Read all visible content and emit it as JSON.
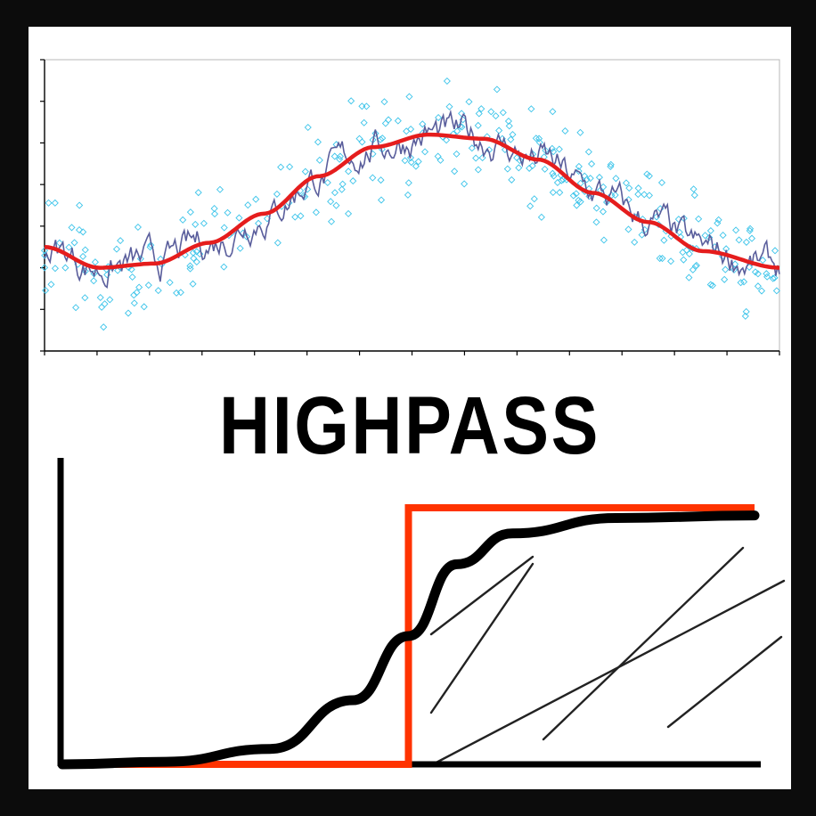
{
  "title": "HIGHPASS",
  "colors": {
    "frame": "#0c0c0c",
    "scatter": "#3cc4ea",
    "smooth": "#e51d1d",
    "noisy": "#5a5e9c",
    "filter": "#ff3300",
    "sketch": "#000000"
  },
  "chart_data": [
    {
      "type": "scatter",
      "xlim": [
        0,
        13.4
      ],
      "ylim": [
        0,
        7
      ],
      "x_ticks": 14,
      "y_ticks": 7,
      "grid": false,
      "series": [
        {
          "kind": "smooth-line",
          "x": [
            0,
            1,
            2,
            3,
            4,
            5,
            6,
            7,
            8,
            9,
            10,
            11,
            12,
            13.4
          ],
          "y": [
            2.5,
            2.0,
            2.1,
            2.6,
            3.3,
            4.2,
            4.9,
            5.2,
            5.1,
            4.6,
            3.8,
            3.1,
            2.4,
            2.0
          ]
        },
        {
          "kind": "noisy-line",
          "note_only": false,
          "x": [
            0,
            1,
            2,
            3,
            4,
            5,
            6,
            7,
            8,
            9,
            10,
            11,
            12,
            13.4
          ],
          "y": [
            2.5,
            2.0,
            2.1,
            2.6,
            3.3,
            4.2,
            4.9,
            5.2,
            5.1,
            4.6,
            3.8,
            3.1,
            2.4,
            2.0
          ]
        },
        {
          "kind": "scatter-points",
          "x": [
            0,
            1,
            2,
            3,
            4,
            5,
            6,
            7,
            8,
            9,
            10,
            11,
            12,
            13.4
          ],
          "y": [
            2.5,
            2.0,
            2.1,
            2.6,
            3.3,
            4.2,
            4.9,
            5.2,
            5.1,
            4.6,
            3.8,
            3.1,
            2.4,
            2.0
          ]
        }
      ]
    },
    {
      "type": "line",
      "series": [
        {
          "kind": "ideal-highpass-step",
          "x": [
            0,
            0.5,
            0.5,
            1
          ],
          "y": [
            0,
            0,
            1,
            1
          ]
        },
        {
          "kind": "filter-response-curve",
          "x": [
            0,
            0.15,
            0.3,
            0.42,
            0.5,
            0.57,
            0.65,
            0.8,
            1
          ],
          "y": [
            0,
            0.01,
            0.06,
            0.25,
            0.5,
            0.78,
            0.9,
            0.96,
            0.97
          ]
        }
      ]
    }
  ]
}
